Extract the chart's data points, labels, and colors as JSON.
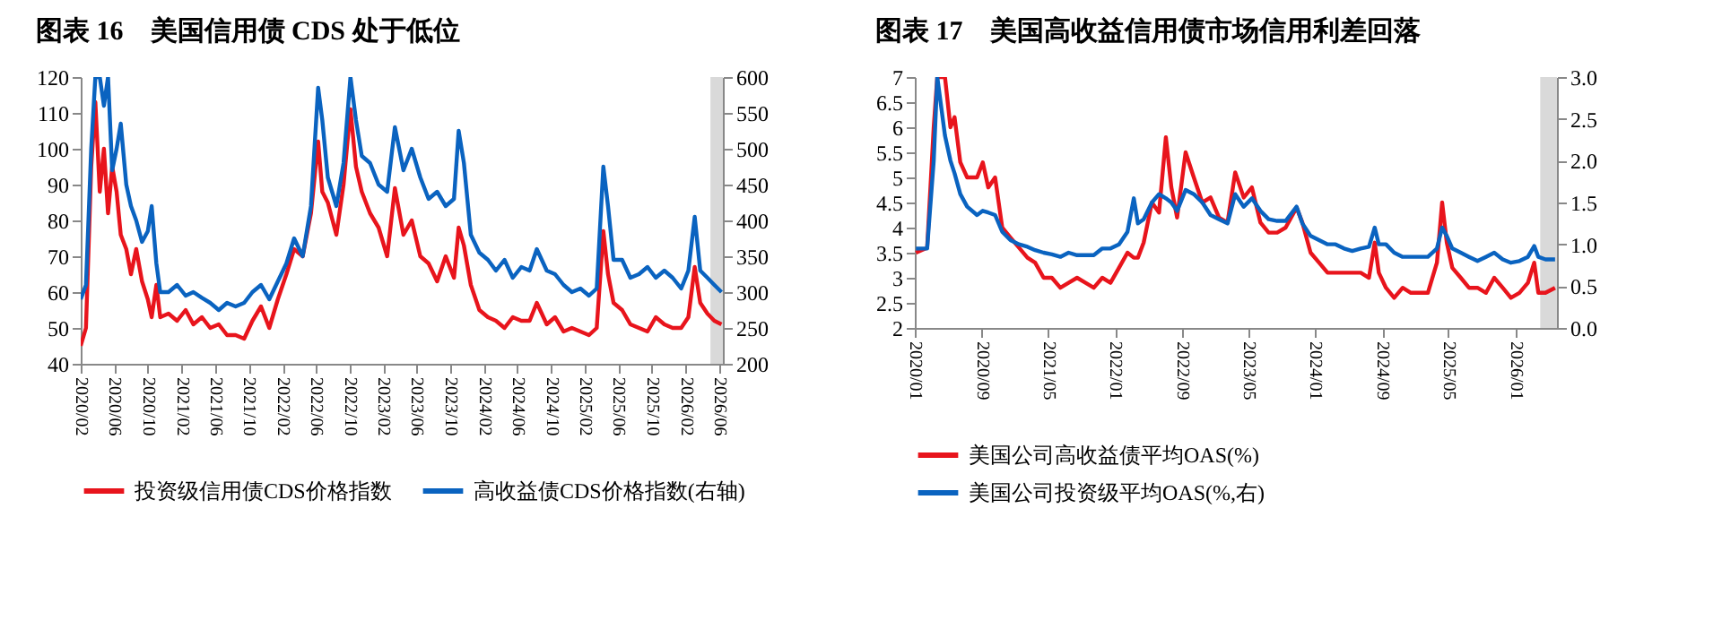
{
  "chart_data": [
    {
      "type": "line",
      "title": "图表 16　美国信用债 CDS 处于低位",
      "legend": "bottom",
      "x": [
        "2020-02-01",
        "2020-02-20",
        "2020-03-10",
        "2020-03-25",
        "2020-04-10",
        "2020-04-25",
        "2020-05-10",
        "2020-05-25",
        "2020-06-10",
        "2020-06-25",
        "2020-07-15",
        "2020-08-01",
        "2020-08-20",
        "2020-09-10",
        "2020-10-01",
        "2020-10-15",
        "2020-11-01",
        "2020-11-15",
        "2020-12-15",
        "2021-01-15",
        "2021-02-15",
        "2021-03-15",
        "2021-04-15",
        "2021-05-15",
        "2021-06-15",
        "2021-07-15",
        "2021-08-15",
        "2021-09-15",
        "2021-10-15",
        "2021-11-15",
        "2021-12-15",
        "2022-01-15",
        "2022-02-15",
        "2022-03-15",
        "2022-04-15",
        "2022-05-15",
        "2022-06-10",
        "2022-06-25",
        "2022-07-15",
        "2022-08-15",
        "2022-09-10",
        "2022-10-05",
        "2022-10-25",
        "2022-11-15",
        "2022-12-15",
        "2023-01-15",
        "2023-02-15",
        "2023-03-15",
        "2023-04-15",
        "2023-05-15",
        "2023-06-15",
        "2023-07-15",
        "2023-08-15",
        "2023-09-15",
        "2023-10-15",
        "2023-11-01",
        "2023-11-20",
        "2023-12-15",
        "2024-01-15",
        "2024-02-15",
        "2024-03-15",
        "2024-04-15",
        "2024-05-15",
        "2024-06-15",
        "2024-07-15",
        "2024-08-10",
        "2024-09-15",
        "2024-10-15",
        "2024-11-15",
        "2024-12-15",
        "2025-01-15",
        "2025-02-15",
        "2025-03-15",
        "2025-04-08",
        "2025-04-25",
        "2025-05-15",
        "2025-06-15",
        "2025-07-15",
        "2025-08-15",
        "2025-09-15",
        "2025-10-15",
        "2025-11-15",
        "2025-12-15",
        "2026-01-15",
        "2026-02-10",
        "2026-03-05",
        "2026-03-25",
        "2026-04-20",
        "2026-05-15",
        "2026-06-10"
      ],
      "series": [
        {
          "name": "投资级信用债CDS价格指数",
          "color": "#e8141c",
          "values": [
            45,
            50,
            95,
            113,
            88,
            100,
            82,
            95,
            88,
            76,
            72,
            65,
            72,
            63,
            58,
            53,
            62,
            53,
            54,
            52,
            55,
            51,
            53,
            50,
            51,
            48,
            48,
            47,
            52,
            56,
            50,
            58,
            65,
            72,
            70,
            82,
            102,
            88,
            85,
            76,
            90,
            111,
            95,
            88,
            82,
            78,
            70,
            89,
            76,
            80,
            70,
            68,
            63,
            70,
            64,
            78,
            73,
            62,
            55,
            53,
            52,
            50,
            53,
            52,
            52,
            57,
            51,
            53,
            49,
            50,
            49,
            48,
            50,
            77,
            65,
            57,
            55,
            51,
            50,
            49,
            53,
            51,
            50,
            50,
            53,
            67,
            57,
            54,
            52,
            51
          ]
        },
        {
          "name": "高收益债CDS价格指数(右轴)",
          "color": "#0a63c0",
          "axis": "y2",
          "values": [
            290,
            310,
            500,
            600,
            600,
            560,
            600,
            470,
            500,
            535,
            450,
            420,
            400,
            370,
            385,
            420,
            340,
            300,
            300,
            310,
            295,
            300,
            292,
            285,
            275,
            285,
            280,
            285,
            300,
            310,
            290,
            315,
            340,
            375,
            350,
            420,
            585,
            540,
            460,
            420,
            480,
            600,
            540,
            490,
            480,
            450,
            440,
            530,
            470,
            500,
            460,
            430,
            440,
            420,
            430,
            525,
            480,
            380,
            355,
            345,
            330,
            345,
            320,
            335,
            330,
            360,
            330,
            325,
            310,
            300,
            305,
            295,
            305,
            475,
            420,
            345,
            345,
            320,
            325,
            335,
            320,
            330,
            320,
            305,
            330,
            405,
            330,
            320,
            310,
            300
          ]
        }
      ],
      "xlim": [
        "2020-02-01",
        "2026-06-15"
      ],
      "xticks": [
        {
          "value": "2020-02",
          "label": "2020/02"
        },
        {
          "value": "2020-06",
          "label": "2020/06"
        },
        {
          "value": "2020-10",
          "label": "2020/10"
        },
        {
          "value": "2021-02",
          "label": "2021/02"
        },
        {
          "value": "2021-06",
          "label": "2021/06"
        },
        {
          "value": "2021-10",
          "label": "2021/10"
        },
        {
          "value": "2022-02",
          "label": "2022/02"
        },
        {
          "value": "2022-06",
          "label": "2022/06"
        },
        {
          "value": "2022-10",
          "label": "2022/10"
        },
        {
          "value": "2023-02",
          "label": "2023/02"
        },
        {
          "value": "2023-06",
          "label": "2023/06"
        },
        {
          "value": "2023-10",
          "label": "2023/10"
        },
        {
          "value": "2024-02",
          "label": "2024/02"
        },
        {
          "value": "2024-06",
          "label": "2024/06"
        },
        {
          "value": "2024-10",
          "label": "2024/10"
        },
        {
          "value": "2025-02",
          "label": "2025/02"
        },
        {
          "value": "2025-06",
          "label": "2025/06"
        },
        {
          "value": "2025-10",
          "label": "2025/10"
        },
        {
          "value": "2026-02",
          "label": "2026/02"
        },
        {
          "value": "2026-06",
          "label": "2026/06"
        }
      ],
      "ylim": [
        40,
        120
      ],
      "yticks": [
        40,
        50,
        60,
        70,
        80,
        90,
        100,
        110,
        120
      ],
      "y2lim": [
        200,
        600
      ],
      "y2ticks": [
        200,
        250,
        300,
        350,
        400,
        450,
        500,
        550,
        600
      ],
      "bands": [
        {
          "axis": "x",
          "from": "2026-05-01",
          "to": "2026-06-15",
          "color": "#d9d9d9"
        }
      ]
    },
    {
      "type": "line",
      "title": "图表 17　美国高收益信用债市场信用利差回落",
      "legend": "bottom",
      "x": [
        "2020-01-05",
        "2020-02-15",
        "2020-03-10",
        "2020-03-23",
        "2020-04-20",
        "2020-05-10",
        "2020-05-25",
        "2020-06-15",
        "2020-07-10",
        "2020-08-15",
        "2020-09-05",
        "2020-09-25",
        "2020-10-20",
        "2020-11-15",
        "2020-12-15",
        "2021-01-15",
        "2021-02-15",
        "2021-03-15",
        "2021-04-15",
        "2021-05-15",
        "2021-06-15",
        "2021-07-15",
        "2021-08-15",
        "2021-09-15",
        "2021-10-15",
        "2021-11-15",
        "2021-12-15",
        "2022-01-15",
        "2022-02-15",
        "2022-03-10",
        "2022-03-25",
        "2022-04-15",
        "2022-05-15",
        "2022-06-10",
        "2022-07-05",
        "2022-07-25",
        "2022-08-15",
        "2022-09-15",
        "2022-10-15",
        "2022-11-15",
        "2022-12-15",
        "2023-01-15",
        "2023-02-15",
        "2023-03-15",
        "2023-04-15",
        "2023-05-15",
        "2023-06-15",
        "2023-07-15",
        "2023-08-15",
        "2023-09-15",
        "2023-10-25",
        "2023-11-15",
        "2023-12-15",
        "2024-01-15",
        "2024-02-15",
        "2024-03-15",
        "2024-04-15",
        "2024-05-15",
        "2024-06-15",
        "2024-07-15",
        "2024-08-05",
        "2024-08-20",
        "2024-09-15",
        "2024-10-15",
        "2024-11-15",
        "2024-12-15",
        "2025-01-15",
        "2025-02-15",
        "2025-03-20",
        "2025-04-08",
        "2025-04-25",
        "2025-05-15",
        "2025-06-15",
        "2025-07-15",
        "2025-08-15",
        "2025-09-15",
        "2025-10-15",
        "2025-11-15",
        "2025-12-15",
        "2026-01-15",
        "2026-02-15",
        "2026-03-10",
        "2026-03-25",
        "2026-04-20",
        "2026-05-25"
      ],
      "series": [
        {
          "name": "美国公司高收益债平均OAS(%)",
          "color": "#e8141c",
          "values": [
            3.5,
            3.6,
            6.0,
            7.0,
            7.0,
            6.0,
            6.2,
            5.3,
            5.0,
            5.0,
            5.3,
            4.8,
            5.0,
            4.0,
            3.8,
            3.6,
            3.4,
            3.3,
            3.0,
            3.0,
            2.8,
            2.9,
            3.0,
            2.9,
            2.8,
            3.0,
            2.9,
            3.2,
            3.5,
            3.4,
            3.4,
            3.7,
            4.5,
            4.3,
            5.8,
            4.8,
            4.2,
            5.5,
            5.0,
            4.5,
            4.6,
            4.2,
            4.1,
            5.1,
            4.6,
            4.8,
            4.1,
            3.9,
            3.9,
            4.0,
            4.4,
            4.1,
            3.5,
            3.3,
            3.1,
            3.1,
            3.1,
            3.1,
            3.1,
            3.0,
            3.7,
            3.1,
            2.8,
            2.6,
            2.8,
            2.7,
            2.7,
            2.7,
            3.3,
            4.5,
            3.7,
            3.2,
            3.0,
            2.8,
            2.8,
            2.7,
            3.0,
            2.8,
            2.6,
            2.7,
            2.9,
            3.3,
            2.7,
            2.7,
            2.8
          ]
        },
        {
          "name": "美国公司投资级平均OAS(%,右)",
          "color": "#0a63c0",
          "axis": "y2",
          "values": [
            0.95,
            0.95,
            2.0,
            3.0,
            2.3,
            2.0,
            1.85,
            1.6,
            1.45,
            1.35,
            1.4,
            1.38,
            1.35,
            1.15,
            1.05,
            1.0,
            0.97,
            0.93,
            0.9,
            0.88,
            0.85,
            0.9,
            0.87,
            0.87,
            0.87,
            0.95,
            0.95,
            1.0,
            1.15,
            1.55,
            1.25,
            1.3,
            1.5,
            1.6,
            1.55,
            1.5,
            1.4,
            1.65,
            1.6,
            1.5,
            1.35,
            1.3,
            1.25,
            1.6,
            1.45,
            1.55,
            1.4,
            1.3,
            1.28,
            1.28,
            1.45,
            1.25,
            1.1,
            1.05,
            1.0,
            1.0,
            0.95,
            0.92,
            0.95,
            0.97,
            1.2,
            1.0,
            1.0,
            0.9,
            0.85,
            0.85,
            0.85,
            0.85,
            0.95,
            1.2,
            1.1,
            0.95,
            0.9,
            0.85,
            0.8,
            0.85,
            0.9,
            0.82,
            0.78,
            0.8,
            0.85,
            0.98,
            0.85,
            0.82,
            0.82
          ]
        }
      ],
      "xlim": [
        "2020-01-01",
        "2026-06-01"
      ],
      "xticks": [
        {
          "value": "2020-01",
          "label": "2020/01"
        },
        {
          "value": "2020-09",
          "label": "2020/09"
        },
        {
          "value": "2021-05",
          "label": "2021/05"
        },
        {
          "value": "2022-01",
          "label": "2022/01"
        },
        {
          "value": "2022-09",
          "label": "2022/09"
        },
        {
          "value": "2023-05",
          "label": "2023/05"
        },
        {
          "value": "2024-01",
          "label": "2024/01"
        },
        {
          "value": "2024-09",
          "label": "2024/09"
        },
        {
          "value": "2025-05",
          "label": "2025/05"
        },
        {
          "value": "2026-01",
          "label": "2026/01"
        }
      ],
      "ylim": [
        2,
        7
      ],
      "yticks": [
        2,
        2.5,
        3,
        3.5,
        4,
        4.5,
        5,
        5.5,
        6,
        6.5,
        7
      ],
      "y2lim": [
        0,
        3
      ],
      "y2ticks": [
        {
          "value": 0,
          "label": "0.0"
        },
        {
          "value": 0.5,
          "label": "0.5"
        },
        {
          "value": 1,
          "label": "1.0"
        },
        {
          "value": 1.5,
          "label": "1.5"
        },
        {
          "value": 2,
          "label": "2.0"
        },
        {
          "value": 2.5,
          "label": "2.5"
        },
        {
          "value": 3,
          "label": "3.0"
        }
      ],
      "bands": [
        {
          "axis": "x",
          "from": "2026-04-01",
          "to": "2026-06-01",
          "color": "#d9d9d9"
        }
      ]
    }
  ]
}
